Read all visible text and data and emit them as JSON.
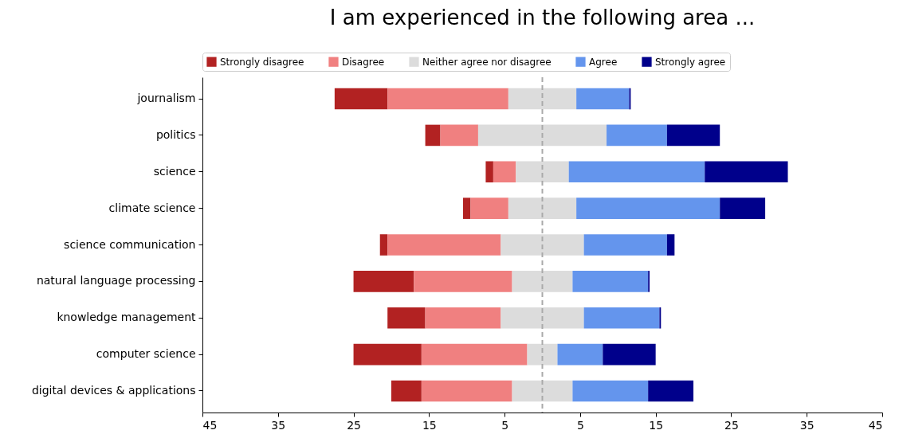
{
  "chart_data": {
    "type": "bar",
    "title": "I am experienced in the following area ...",
    "orientation": "horizontal",
    "categories": [
      "journalism",
      "politics",
      "science",
      "climate science",
      "science communication",
      "natural language processing",
      "knowledge management",
      "computer science",
      "digital devices & applications"
    ],
    "series": [
      {
        "name": "Strongly disagree",
        "color": "#b22222",
        "base": [
          -27.5,
          -15.5,
          -7.5,
          -10.5,
          -21.5,
          -25,
          -20.5,
          -25,
          -20
        ],
        "values": [
          7,
          2,
          1,
          1,
          1,
          8,
          5,
          9,
          4
        ]
      },
      {
        "name": "Disagree",
        "color": "#f08080",
        "base": [
          -20.5,
          -13.5,
          -6.5,
          -9.5,
          -20.5,
          -17,
          -15.5,
          -16,
          -16
        ],
        "values": [
          16,
          5,
          3,
          5,
          15,
          13,
          10,
          14,
          12
        ]
      },
      {
        "name": "Neither agree nor disagree",
        "color": "#dcdcdc",
        "base": [
          -4.5,
          -8.5,
          -3.5,
          -4.5,
          -5.5,
          -4,
          -5.5,
          -2,
          -4
        ],
        "values": [
          9,
          17,
          7,
          9,
          11,
          8,
          11,
          4,
          8
        ]
      },
      {
        "name": "Agree",
        "color": "#6495ed",
        "base": [
          4.5,
          8.5,
          3.5,
          4.5,
          5.5,
          4,
          5.5,
          2,
          4
        ],
        "values": [
          7,
          8,
          18,
          19,
          11,
          10,
          10,
          6,
          10
        ]
      },
      {
        "name": "Strongly agree",
        "color": "#00008b",
        "base": [
          11.5,
          16.5,
          21.5,
          23.5,
          16.5,
          14,
          15.5,
          8,
          14
        ],
        "values": [
          0.2,
          7,
          11,
          6,
          1,
          0.2,
          0.2,
          7,
          6
        ]
      }
    ],
    "xlim": [
      -45,
      45
    ],
    "xticks": [
      {
        "value": -45,
        "label": "45"
      },
      {
        "value": -35,
        "label": "35"
      },
      {
        "value": -25,
        "label": "25"
      },
      {
        "value": -15,
        "label": "15"
      },
      {
        "value": -5,
        "label": "5"
      },
      {
        "value": 5,
        "label": "5"
      },
      {
        "value": 15,
        "label": "15"
      },
      {
        "value": 25,
        "label": "25"
      },
      {
        "value": 35,
        "label": "35"
      },
      {
        "value": 45,
        "label": "45"
      }
    ],
    "ref_lines": [
      {
        "axis": "x",
        "value": 0,
        "color": "#a9a9a9",
        "line_style": "dashed"
      }
    ],
    "legend": "top",
    "grid": false
  }
}
